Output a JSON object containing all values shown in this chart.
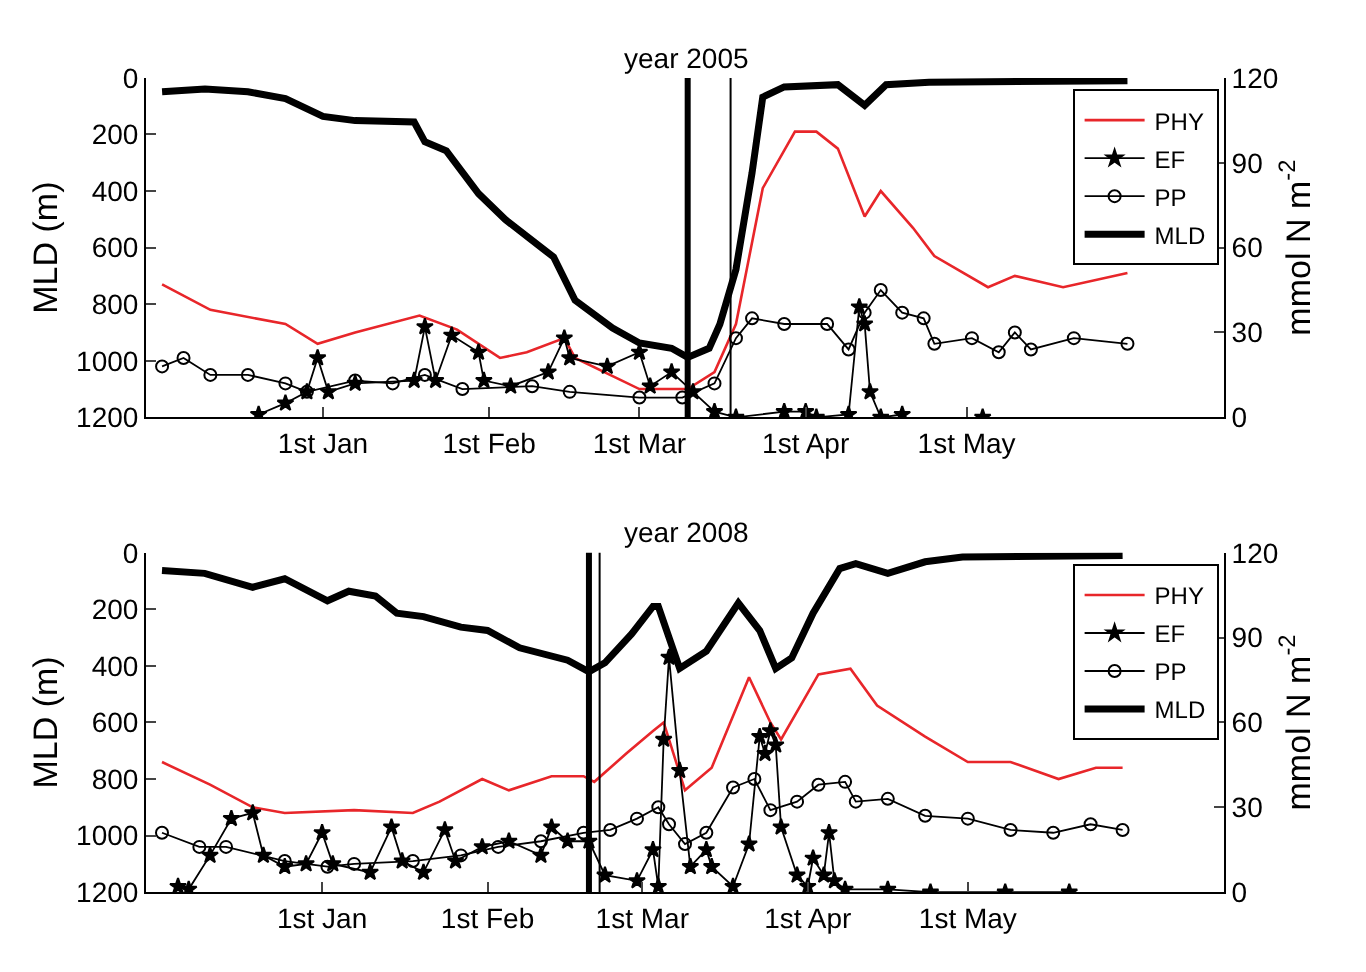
{
  "chart_data": [
    {
      "type": "line",
      "title": "year 2005",
      "ylabel": "MLD (m)",
      "y2label": "mmol N m$^{-2}$",
      "legend": "top right",
      "xlim": [
        "2004-11-29",
        "2005-06-18"
      ],
      "xticks": [
        {
          "value": "2005-01-01",
          "label": "1st Jan"
        },
        {
          "value": "2005-02-01",
          "label": "1st Feb"
        },
        {
          "value": "2005-03-01",
          "label": "1st Mar"
        },
        {
          "value": "2005-04-01",
          "label": "1st Apr"
        },
        {
          "value": "2005-05-01",
          "label": "1st May"
        }
      ],
      "ylim": [
        1200,
        0
      ],
      "yticks": [
        0,
        200,
        400,
        600,
        800,
        1000,
        1200
      ],
      "y2lim": [
        0,
        120
      ],
      "y2ticks": [
        0,
        30,
        60,
        90,
        120
      ],
      "ref_lines": [
        {
          "axis": "x",
          "value": "2005-03-10",
          "color": "#000000"
        },
        {
          "axis": "x",
          "value": "2005-03-18",
          "color": "#000000"
        }
      ],
      "series": [
        {
          "name": "PHY",
          "color": "#e8262a",
          "axis": "y2",
          "marker": "none",
          "x": [
            "2004-12-02",
            "2004-12-11",
            "2004-12-25",
            "2004-12-31",
            "2005-01-07",
            "2005-01-19",
            "2005-01-26",
            "2005-02-03",
            "2005-02-08",
            "2005-02-15",
            "2005-02-17",
            "2005-03-01",
            "2005-03-10",
            "2005-03-15",
            "2005-03-19",
            "2005-03-24",
            "2005-03-30",
            "2005-04-03",
            "2005-04-07",
            "2005-04-12",
            "2005-04-15",
            "2005-04-21",
            "2005-04-25",
            "2005-05-05",
            "2005-05-10",
            "2005-05-19",
            "2005-05-31"
          ],
          "values": [
            47,
            38,
            33,
            26,
            30,
            36,
            31,
            21,
            23,
            28,
            21,
            10,
            10,
            16,
            33,
            81,
            101,
            101,
            95,
            71,
            80,
            67,
            57,
            46,
            50,
            46,
            51
          ]
        },
        {
          "name": "EF",
          "color": "#000000",
          "axis": "y2",
          "marker": "star",
          "x": [
            "2004-12-20",
            "2004-12-25",
            "2004-12-29",
            "2004-12-31",
            "2005-01-02",
            "2005-01-07",
            "2005-01-18",
            "2005-01-20",
            "2005-01-22",
            "2005-01-25",
            "2005-01-30",
            "2005-01-31",
            "2005-02-05",
            "2005-02-12",
            "2005-02-15",
            "2005-02-16",
            "2005-02-23",
            "2005-03-01",
            "2005-03-03",
            "2005-03-07",
            "2005-03-11",
            "2005-03-15",
            "2005-03-19",
            "2005-03-28",
            "2005-04-01",
            "2005-04-03",
            "2005-04-09",
            "2005-04-11",
            "2005-04-12",
            "2005-04-13",
            "2005-04-15",
            "2005-04-19",
            "2005-04-25",
            "2005-05-04"
          ],
          "values": [
            1,
            5,
            9,
            21,
            9,
            12,
            13,
            32,
            13,
            29,
            23,
            13,
            11,
            16,
            28,
            21,
            18,
            23,
            11,
            16,
            9,
            2,
            0,
            2,
            2,
            0,
            1,
            39,
            33,
            9,
            0,
            1,
            null,
            0
          ]
        },
        {
          "name": "PP",
          "color": "#000000",
          "axis": "y2",
          "marker": "circle",
          "x": [
            "2004-12-02",
            "2004-12-06",
            "2004-12-11",
            "2004-12-18",
            "2004-12-25",
            "2004-12-29",
            "2005-01-07",
            "2005-01-14",
            "2005-01-20",
            "2005-01-27",
            "2005-02-09",
            "2005-02-16",
            "2005-03-01",
            "2005-03-09",
            "2005-03-15",
            "2005-03-19",
            "2005-03-22",
            "2005-03-28",
            "2005-04-05",
            "2005-04-09",
            "2005-04-12",
            "2005-04-15",
            "2005-04-19",
            "2005-04-23",
            "2005-04-25",
            "2005-05-02",
            "2005-05-07",
            "2005-05-10",
            "2005-05-13",
            "2005-05-21",
            "2005-05-31"
          ],
          "values": [
            18,
            21,
            15,
            15,
            12,
            9,
            13,
            12,
            15,
            10,
            11,
            9,
            7,
            7,
            12,
            28,
            35,
            33,
            33,
            24,
            37,
            45,
            37,
            35,
            26,
            28,
            23,
            30,
            24,
            28,
            26
          ]
        },
        {
          "name": "MLD",
          "color": "#000000",
          "axis": "y",
          "marker": "none",
          "x": [
            "2004-12-02",
            "2004-12-10",
            "2004-12-18",
            "2004-12-25",
            "2005-01-01",
            "2005-01-07",
            "2005-01-18",
            "2005-01-20",
            "2005-01-24",
            "2005-01-30",
            "2005-02-04",
            "2005-02-11",
            "2005-02-13",
            "2005-02-17",
            "2005-02-24",
            "2005-03-01",
            "2005-03-07",
            "2005-03-10",
            "2005-03-14",
            "2005-03-16",
            "2005-03-19",
            "2005-03-22",
            "2005-03-24",
            "2005-03-28",
            "2005-04-07",
            "2005-04-12",
            "2005-04-16",
            "2005-04-24",
            "2005-05-31"
          ],
          "values": [
            49,
            39,
            49,
            73,
            136,
            151,
            156,
            226,
            258,
            409,
            501,
            604,
            633,
            786,
            884,
            937,
            956,
            988,
            956,
            871,
            677,
            336,
            68,
            32,
            24,
            97,
            24,
            15,
            10
          ]
        }
      ]
    },
    {
      "type": "line",
      "title": "year 2008",
      "ylabel": "MLD (m)",
      "y2label": "mmol N m$^{-2}$",
      "legend": "top right",
      "xlim": [
        "2007-11-29",
        "2008-06-18"
      ],
      "xticks": [
        {
          "value": "2008-01-01",
          "label": "1st Jan"
        },
        {
          "value": "2008-02-01",
          "label": "1st Feb"
        },
        {
          "value": "2008-03-01",
          "label": "1st Mar"
        },
        {
          "value": "2008-04-01",
          "label": "1st Apr"
        },
        {
          "value": "2008-05-01",
          "label": "1st May"
        }
      ],
      "ylim": [
        1200,
        0
      ],
      "yticks": [
        0,
        200,
        400,
        600,
        800,
        1000,
        1200
      ],
      "y2lim": [
        0,
        120
      ],
      "y2ticks": [
        0,
        30,
        60,
        90,
        120
      ],
      "ref_lines": [
        {
          "axis": "x",
          "value": "2008-02-20",
          "color": "#000000"
        },
        {
          "axis": "x",
          "value": "2008-02-22",
          "color": "#000000"
        }
      ],
      "series": [
        {
          "name": "PHY",
          "color": "#e8262a",
          "axis": "y2",
          "marker": "none",
          "x": [
            "2007-12-02",
            "2007-12-11",
            "2007-12-19",
            "2007-12-25",
            "2008-01-07",
            "2008-01-18",
            "2008-01-23",
            "2008-01-31",
            "2008-02-05",
            "2008-02-13",
            "2008-02-19",
            "2008-02-21",
            "2008-02-27",
            "2008-03-03",
            "2008-03-05",
            "2008-03-09",
            "2008-03-14",
            "2008-03-21",
            "2008-03-25",
            "2008-03-27",
            "2008-04-03",
            "2008-04-09",
            "2008-04-14",
            "2008-04-23",
            "2008-05-01",
            "2008-05-09",
            "2008-05-18",
            "2008-05-25",
            "2008-05-30"
          ],
          "values": [
            46,
            38,
            30,
            28,
            29,
            28,
            32,
            40,
            36,
            41,
            41,
            39,
            49,
            57,
            60,
            36,
            44,
            76,
            60,
            54,
            77,
            79,
            66,
            55,
            46,
            46,
            40,
            44,
            44
          ]
        },
        {
          "name": "EF",
          "color": "#000000",
          "axis": "y2",
          "marker": "star",
          "x": [
            "2007-12-05",
            "2007-12-07",
            "2007-12-11",
            "2007-12-15",
            "2007-12-19",
            "2007-12-21",
            "2007-12-25",
            "2007-12-29",
            "2008-01-01",
            "2008-01-03",
            "2008-01-10",
            "2008-01-14",
            "2008-01-16",
            "2008-01-20",
            "2008-01-24",
            "2008-01-26",
            "2008-01-31",
            "2008-02-05",
            "2008-02-11",
            "2008-02-13",
            "2008-02-16",
            "2008-02-20",
            "2008-02-23",
            "2008-02-29",
            "2008-03-03",
            "2008-03-04",
            "2008-03-05",
            "2008-03-06",
            "2008-03-08",
            "2008-03-10",
            "2008-03-13",
            "2008-03-14",
            "2008-03-18",
            "2008-03-21",
            "2008-03-23",
            "2008-03-24",
            "2008-03-25",
            "2008-03-26",
            "2008-03-27",
            "2008-03-30",
            "2008-04-01",
            "2008-04-02",
            "2008-04-04",
            "2008-04-05",
            "2008-04-06",
            "2008-04-08",
            "2008-04-16",
            "2008-04-24",
            "2008-05-08",
            "2008-05-20"
          ],
          "values": [
            2,
            1,
            13,
            26,
            28,
            13,
            9,
            10,
            21,
            10,
            7,
            23,
            11,
            7,
            22,
            11,
            16,
            18,
            13,
            23,
            18,
            18,
            6,
            4,
            15,
            2,
            54,
            83,
            43,
            9,
            15,
            9,
            2,
            17,
            55,
            49,
            57,
            52,
            23,
            6,
            2,
            12,
            6,
            21,
            4,
            1,
            1,
            0,
            0,
            0
          ]
        },
        {
          "name": "PP",
          "color": "#000000",
          "axis": "y2",
          "marker": "circle",
          "x": [
            "2007-12-02",
            "2007-12-09",
            "2007-12-14",
            "2007-12-25",
            "2008-01-02",
            "2008-01-07",
            "2008-01-18",
            "2008-01-27",
            "2008-02-03",
            "2008-02-11",
            "2008-02-19",
            "2008-02-24",
            "2008-02-29",
            "2008-03-04",
            "2008-03-06",
            "2008-03-09",
            "2008-03-13",
            "2008-03-18",
            "2008-03-22",
            "2008-03-25",
            "2008-03-30",
            "2008-04-03",
            "2008-04-08",
            "2008-04-10",
            "2008-04-16",
            "2008-04-23",
            "2008-05-01",
            "2008-05-09",
            "2008-05-17",
            "2008-05-24",
            "2008-05-30"
          ],
          "values": [
            21,
            16,
            16,
            11,
            9,
            10,
            11,
            13,
            16,
            18,
            21,
            22,
            26,
            30,
            24,
            17,
            21,
            37,
            40,
            29,
            32,
            38,
            39,
            32,
            33,
            27,
            26,
            22,
            21,
            24,
            22
          ]
        },
        {
          "name": "MLD",
          "color": "#000000",
          "axis": "y",
          "marker": "none",
          "x": [
            "2007-12-02",
            "2007-12-10",
            "2007-12-19",
            "2007-12-25",
            "2008-01-02",
            "2008-01-06",
            "2008-01-11",
            "2008-01-15",
            "2008-01-20",
            "2008-01-27",
            "2008-02-01",
            "2008-02-07",
            "2008-02-16",
            "2008-02-20",
            "2008-02-23",
            "2008-02-28",
            "2008-03-03",
            "2008-03-04",
            "2008-03-08",
            "2008-03-13",
            "2008-03-19",
            "2008-03-23",
            "2008-03-26",
            "2008-03-29",
            "2008-04-02",
            "2008-04-07",
            "2008-04-10",
            "2008-04-16",
            "2008-04-23",
            "2008-04-30",
            "2008-05-30"
          ],
          "values": [
            63,
            73,
            122,
            92,
            170,
            136,
            153,
            214,
            226,
            263,
            275,
            336,
            380,
            421,
            389,
            287,
            190,
            190,
            409,
            348,
            178,
            275,
            409,
            372,
            214,
            56,
            39,
            73,
            32,
            15,
            10
          ]
        }
      ]
    }
  ]
}
